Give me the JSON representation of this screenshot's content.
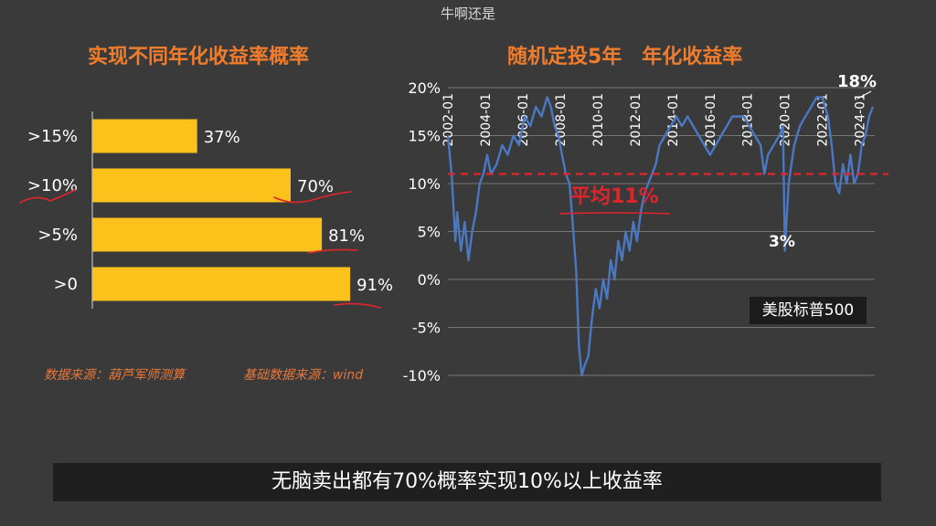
{
  "top_caption": "牛啊还是",
  "subtitle": "无脑卖出都有70%概率实现10%以上收益率",
  "left_chart": {
    "title": "实现不同年化收益率概率",
    "source_note_1": "数据来源：葫芦军师测算",
    "source_note_2": "基础数据来源：wind"
  },
  "right_chart": {
    "title": "随机定投5年　年化收益率",
    "legend_label": "美股标普500",
    "avg_label": "平均11%",
    "peak_label": "18%",
    "trough_label": "3%"
  },
  "chart_data": [
    {
      "type": "bar",
      "orientation": "horizontal",
      "title": "实现不同年化收益率概率",
      "categories": [
        ">15%",
        ">10%",
        ">5%",
        ">0"
      ],
      "values": [
        37,
        70,
        81,
        91
      ],
      "value_labels": [
        "37%",
        "70%",
        "81%",
        "91%"
      ],
      "xlim": [
        0,
        100
      ],
      "color": "#fcc21b"
    },
    {
      "type": "line",
      "title": "随机定投5年　年化收益率",
      "x_ticks": [
        "2002-01",
        "2004-01",
        "2006-01",
        "2008-01",
        "2010-01",
        "2012-01",
        "2014-01",
        "2016-01",
        "2018-01",
        "2020-01",
        "2022-01",
        "2024-01"
      ],
      "y_ticks": [
        "-10%",
        "-5%",
        "0%",
        "5%",
        "10%",
        "15%",
        "20%"
      ],
      "ylim": [
        -10,
        20
      ],
      "xlim": [
        2002.0,
        2024.8
      ],
      "reference_line": {
        "value": 11,
        "label": "平均11%"
      },
      "annotations": [
        {
          "text": "18%",
          "x": 2024.5,
          "y": 18
        },
        {
          "text": "3%",
          "x": 2019.9,
          "y": 3
        }
      ],
      "series": [
        {
          "name": "美股标普500",
          "color": "#4a78c2",
          "x": [
            2002.0,
            2002.2,
            2002.4,
            2002.5,
            2002.7,
            2002.9,
            2003.1,
            2003.3,
            2003.5,
            2003.7,
            2003.9,
            2004.1,
            2004.3,
            2004.6,
            2004.9,
            2005.2,
            2005.5,
            2005.8,
            2006.1,
            2006.4,
            2006.7,
            2007.0,
            2007.3,
            2007.5,
            2007.7,
            2007.9,
            2008.1,
            2008.3,
            2008.5,
            2008.7,
            2008.85,
            2009.0,
            2009.15,
            2009.3,
            2009.5,
            2009.7,
            2009.9,
            2010.1,
            2010.3,
            2010.5,
            2010.7,
            2010.9,
            2011.1,
            2011.3,
            2011.5,
            2011.7,
            2011.9,
            2012.1,
            2012.3,
            2012.5,
            2012.7,
            2012.9,
            2013.1,
            2013.3,
            2013.6,
            2013.9,
            2014.2,
            2014.5,
            2014.8,
            2015.1,
            2015.4,
            2015.7,
            2016.0,
            2016.3,
            2016.6,
            2016.9,
            2017.2,
            2017.5,
            2017.8,
            2018.1,
            2018.4,
            2018.7,
            2018.9,
            2019.1,
            2019.4,
            2019.7,
            2019.9,
            2020.0,
            2020.2,
            2020.5,
            2020.8,
            2021.1,
            2021.4,
            2021.7,
            2022.0,
            2022.3,
            2022.5,
            2022.7,
            2022.9,
            2023.1,
            2023.3,
            2023.5,
            2023.7,
            2023.9,
            2024.1,
            2024.3,
            2024.5,
            2024.7
          ],
          "y": [
            15,
            11,
            4,
            7,
            3,
            6,
            2,
            5,
            7,
            10,
            11,
            13,
            11,
            12,
            14,
            13,
            15,
            14,
            17,
            16,
            18,
            17,
            19,
            18,
            16,
            15,
            13,
            11,
            10,
            5,
            1,
            -7,
            -10,
            -9,
            -8,
            -4,
            -1,
            -3,
            0,
            -2,
            2,
            0,
            4,
            2,
            5,
            3,
            6,
            4,
            7,
            9,
            10,
            11,
            12,
            14,
            15,
            16,
            17,
            16,
            17,
            16,
            15,
            14,
            13,
            14,
            15,
            16,
            17,
            17,
            17,
            16,
            15,
            14,
            11,
            13,
            14,
            15,
            16,
            3,
            10,
            14,
            16,
            17,
            18,
            19,
            19,
            17,
            14,
            10,
            9,
            12,
            10,
            13,
            10,
            11,
            14,
            15,
            17,
            18
          ]
        }
      ]
    }
  ]
}
